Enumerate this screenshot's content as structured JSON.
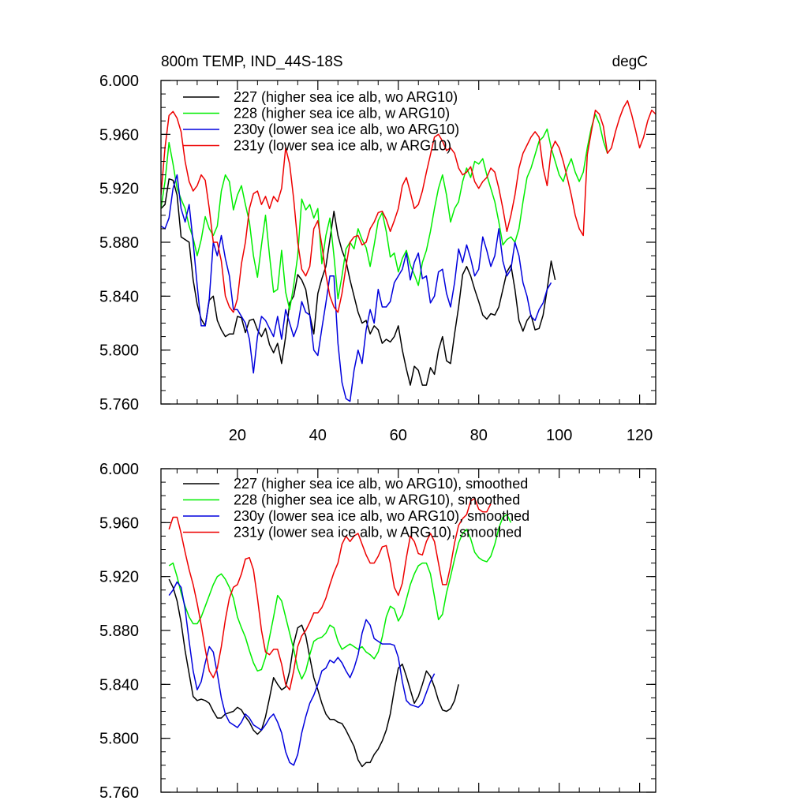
{
  "chart_data": [
    {
      "type": "line",
      "title": "800m TEMP, IND_44S-18S",
      "units_label": "degC",
      "xlim": [
        1,
        124
      ],
      "ylim": [
        5.76,
        6.0
      ],
      "x_ticks": [
        20,
        40,
        60,
        80,
        100,
        120
      ],
      "y_ticks": [
        "5.760",
        "5.800",
        "5.840",
        "5.880",
        "5.920",
        "5.960",
        "6.000"
      ],
      "legend_position": "top-left",
      "series": [
        {
          "name": "227 (higher sea ice alb, wo ARG10)",
          "color": "#000000",
          "x_start": 1,
          "values": [
            5.905,
            5.908,
            5.927,
            5.926,
            5.915,
            5.884,
            5.882,
            5.88,
            5.852,
            5.834,
            5.823,
            5.818,
            5.837,
            5.84,
            5.822,
            5.815,
            5.81,
            5.812,
            5.812,
            5.825,
            5.824,
            5.813,
            5.822,
            5.823,
            5.815,
            5.81,
            5.816,
            5.804,
            5.798,
            5.805,
            5.79,
            5.81,
            5.835,
            5.84,
            5.856,
            5.852,
            5.845,
            5.826,
            5.812,
            5.842,
            5.853,
            5.862,
            5.882,
            5.903,
            5.885,
            5.874,
            5.866,
            5.852,
            5.84,
            5.828,
            5.82,
            5.822,
            5.812,
            5.818,
            5.815,
            5.805,
            5.808,
            5.806,
            5.81,
            5.818,
            5.8,
            5.786,
            5.774,
            5.788,
            5.785,
            5.774,
            5.774,
            5.787,
            5.782,
            5.8,
            5.81,
            5.792,
            5.79,
            5.812,
            5.832,
            5.856,
            5.862,
            5.855,
            5.845,
            5.836,
            5.826,
            5.823,
            5.827,
            5.826,
            5.832,
            5.845,
            5.858,
            5.863,
            5.845,
            5.822,
            5.814,
            5.822,
            5.826,
            5.815,
            5.816,
            5.826,
            5.845,
            5.866,
            5.852
          ]
        },
        {
          "name": "228 (higher sea ice alb, w ARG10)",
          "color": "#00ee00",
          "x_start": 1,
          "values": [
            5.905,
            5.925,
            5.954,
            5.938,
            5.92,
            5.912,
            5.905,
            5.892,
            5.883,
            5.87,
            5.882,
            5.899,
            5.89,
            5.885,
            5.892,
            5.918,
            5.93,
            5.925,
            5.904,
            5.915,
            5.922,
            5.908,
            5.895,
            5.87,
            5.854,
            5.878,
            5.9,
            5.87,
            5.843,
            5.845,
            5.874,
            5.843,
            5.83,
            5.848,
            5.87,
            5.912,
            5.904,
            5.908,
            5.898,
            5.905,
            5.864,
            5.885,
            5.898,
            5.87,
            5.838,
            5.855,
            5.875,
            5.88,
            5.875,
            5.89,
            5.882,
            5.876,
            5.862,
            5.878,
            5.896,
            5.902,
            5.888,
            5.869,
            5.872,
            5.858,
            5.868,
            5.874,
            5.863,
            5.856,
            5.848,
            5.865,
            5.874,
            5.888,
            5.905,
            5.92,
            5.93,
            5.915,
            5.895,
            5.905,
            5.91,
            5.925,
            5.935,
            5.928,
            5.94,
            5.938,
            5.942,
            5.93,
            5.92,
            5.91,
            5.895,
            5.878,
            5.882,
            5.884,
            5.88,
            5.89,
            5.91,
            5.928,
            5.935,
            5.945,
            5.955,
            5.958,
            5.964,
            5.95,
            5.94,
            5.93,
            5.925,
            5.935,
            5.942,
            5.932,
            5.925,
            5.932,
            5.95,
            5.965,
            5.975,
            5.968,
            5.955,
            5.946
          ]
        },
        {
          "name": "230y (lower sea ice alb, wo ARG10)",
          "color": "#0000dd",
          "x_start": 1,
          "values": [
            5.892,
            5.89,
            5.898,
            5.92,
            5.93,
            5.905,
            5.895,
            5.908,
            5.88,
            5.848,
            5.818,
            5.818,
            5.838,
            5.88,
            5.87,
            5.885,
            5.868,
            5.855,
            5.83,
            5.83,
            5.825,
            5.82,
            5.808,
            5.783,
            5.81,
            5.825,
            5.822,
            5.816,
            5.81,
            5.825,
            5.808,
            5.83,
            5.82,
            5.81,
            5.818,
            5.836,
            5.828,
            5.826,
            5.8,
            5.796,
            5.816,
            5.835,
            5.855,
            5.855,
            5.805,
            5.776,
            5.764,
            5.762,
            5.785,
            5.8,
            5.79,
            5.815,
            5.83,
            5.82,
            5.845,
            5.832,
            5.832,
            5.836,
            5.85,
            5.855,
            5.86,
            5.872,
            5.852,
            5.865,
            5.872,
            5.853,
            5.855,
            5.835,
            5.84,
            5.858,
            5.86,
            5.842,
            5.832,
            5.85,
            5.875,
            5.865,
            5.878,
            5.868,
            5.855,
            5.86,
            5.884,
            5.874,
            5.862,
            5.87,
            5.89,
            5.866,
            5.855,
            5.86,
            5.88,
            5.87,
            5.85,
            5.84,
            5.825,
            5.822,
            5.83,
            5.835,
            5.845,
            5.85
          ]
        },
        {
          "name": "231y (lower sea ice alb, w ARG10)",
          "color": "#ee0000",
          "x_start": 1,
          "values": [
            5.915,
            5.95,
            5.974,
            5.977,
            5.972,
            5.962,
            5.94,
            5.925,
            5.918,
            5.922,
            5.93,
            5.926,
            5.905,
            5.88,
            5.88,
            5.866,
            5.84,
            5.832,
            5.828,
            5.838,
            5.864,
            5.88,
            5.905,
            5.916,
            5.918,
            5.908,
            5.914,
            5.905,
            5.914,
            5.91,
            5.92,
            5.95,
            5.938,
            5.912,
            5.88,
            5.86,
            5.855,
            5.862,
            5.89,
            5.896,
            5.878,
            5.856,
            5.84,
            5.832,
            5.828,
            5.842,
            5.862,
            5.88,
            5.884,
            5.885,
            5.878,
            5.88,
            5.89,
            5.895,
            5.902,
            5.903,
            5.897,
            5.888,
            5.896,
            5.905,
            5.922,
            5.928,
            5.917,
            5.905,
            5.908,
            5.918,
            5.932,
            5.945,
            5.958,
            5.96,
            5.955,
            5.948,
            5.95,
            5.946,
            5.935,
            5.93,
            5.932,
            5.936,
            5.925,
            5.92,
            5.925,
            5.928,
            5.935,
            5.932,
            5.92,
            5.905,
            5.888,
            5.9,
            5.915,
            5.935,
            5.946,
            5.952,
            5.958,
            5.962,
            5.958,
            5.935,
            5.922,
            5.948,
            5.955,
            5.95,
            5.94,
            5.928,
            5.915,
            5.9,
            5.89,
            5.885,
            5.945,
            5.962,
            5.978,
            5.975,
            5.966,
            5.946,
            5.95,
            5.962,
            5.972,
            5.98,
            5.985,
            5.975,
            5.963,
            5.95,
            5.958,
            5.97,
            5.978,
            5.975
          ]
        }
      ]
    },
    {
      "type": "line",
      "xlim": [
        1,
        124
      ],
      "ylim": [
        5.76,
        6.0
      ],
      "y_ticks": [
        "5.760",
        "5.800",
        "5.840",
        "5.880",
        "5.920",
        "5.960",
        "6.000"
      ],
      "legend_position": "top-left",
      "series": [
        {
          "name": "227 (higher sea ice alb, wo ARG10), smoothed",
          "color": "#000000",
          "x_start": 3,
          "values": [
            5.918,
            5.912,
            5.902,
            5.886,
            5.865,
            5.848,
            5.831,
            5.828,
            5.829,
            5.828,
            5.826,
            5.82,
            5.815,
            5.815,
            5.818,
            5.819,
            5.82,
            5.823,
            5.821,
            5.816,
            5.812,
            5.806,
            5.803,
            5.806,
            5.816,
            5.83,
            5.845,
            5.84,
            5.836,
            5.838,
            5.85,
            5.87,
            5.882,
            5.884,
            5.876,
            5.86,
            5.845,
            5.836,
            5.826,
            5.818,
            5.814,
            5.814,
            5.812,
            5.811,
            5.806,
            5.8,
            5.794,
            5.784,
            5.779,
            5.782,
            5.782,
            5.788,
            5.792,
            5.798,
            5.806,
            5.818,
            5.836,
            5.852,
            5.855,
            5.846,
            5.836,
            5.826,
            5.831,
            5.84,
            5.85,
            5.846,
            5.838,
            5.828,
            5.821,
            5.82,
            5.822,
            5.828,
            5.84
          ]
        },
        {
          "name": "228 (higher sea ice alb, w ARG10), smoothed",
          "color": "#00ee00",
          "x_start": 3,
          "values": [
            5.928,
            5.93,
            5.92,
            5.908,
            5.898,
            5.89,
            5.885,
            5.885,
            5.89,
            5.898,
            5.906,
            5.914,
            5.92,
            5.922,
            5.918,
            5.912,
            5.904,
            5.89,
            5.882,
            5.875,
            5.865,
            5.856,
            5.85,
            5.851,
            5.86,
            5.875,
            5.89,
            5.906,
            5.902,
            5.89,
            5.878,
            5.866,
            5.852,
            5.844,
            5.85,
            5.862,
            5.872,
            5.874,
            5.875,
            5.878,
            5.884,
            5.882,
            5.872,
            5.866,
            5.868,
            5.87,
            5.868,
            5.866,
            5.868,
            5.864,
            5.862,
            5.859,
            5.864,
            5.875,
            5.89,
            5.898,
            5.896,
            5.887,
            5.892,
            5.903,
            5.914,
            5.922,
            5.928,
            5.93,
            5.93,
            5.922,
            5.905,
            5.888,
            5.892,
            5.908,
            5.92,
            5.933,
            5.945,
            5.952,
            5.955,
            5.948,
            5.938,
            5.934,
            5.932,
            5.931,
            5.935,
            5.944,
            5.956,
            5.964,
            5.966,
            5.96
          ]
        },
        {
          "name": "230y (lower sea ice alb, wo ARG10), smoothed",
          "color": "#0000dd",
          "x_start": 3,
          "values": [
            5.906,
            5.91,
            5.916,
            5.912,
            5.896,
            5.872,
            5.85,
            5.836,
            5.842,
            5.856,
            5.868,
            5.864,
            5.848,
            5.83,
            5.818,
            5.812,
            5.81,
            5.808,
            5.812,
            5.818,
            5.815,
            5.81,
            5.808,
            5.806,
            5.81,
            5.815,
            5.818,
            5.812,
            5.804,
            5.79,
            5.782,
            5.78,
            5.788,
            5.804,
            5.816,
            5.826,
            5.832,
            5.84,
            5.85,
            5.852,
            5.858,
            5.856,
            5.86,
            5.856,
            5.85,
            5.845,
            5.852,
            5.862,
            5.878,
            5.888,
            5.884,
            5.874,
            5.872,
            5.87,
            5.87,
            5.87,
            5.869,
            5.86,
            5.842,
            5.828,
            5.825,
            5.824,
            5.823,
            5.826,
            5.834,
            5.842,
            5.848
          ]
        },
        {
          "name": "231y (lower sea ice alb, w ARG10), smoothed",
          "color": "#ee0000",
          "x_start": 3,
          "values": [
            5.955,
            5.964,
            5.964,
            5.952,
            5.938,
            5.925,
            5.914,
            5.9,
            5.884,
            5.866,
            5.85,
            5.845,
            5.852,
            5.868,
            5.888,
            5.904,
            5.912,
            5.914,
            5.922,
            5.933,
            5.934,
            5.925,
            5.904,
            5.88,
            5.864,
            5.862,
            5.866,
            5.866,
            5.855,
            5.84,
            5.836,
            5.85,
            5.868,
            5.876,
            5.88,
            5.886,
            5.893,
            5.893,
            5.897,
            5.904,
            5.914,
            5.923,
            5.93,
            5.944,
            5.95,
            5.946,
            5.95,
            5.952,
            5.944,
            5.936,
            5.93,
            5.93,
            5.935,
            5.942,
            5.943,
            5.93,
            5.912,
            5.906,
            5.915,
            5.934,
            5.95,
            5.946,
            5.937,
            5.936,
            5.946,
            5.952,
            5.946,
            5.93,
            5.914,
            5.914,
            5.928,
            5.945,
            5.958,
            5.963,
            5.966,
            5.976,
            5.978,
            5.97,
            5.968,
            5.968,
            5.974
          ]
        }
      ]
    }
  ]
}
